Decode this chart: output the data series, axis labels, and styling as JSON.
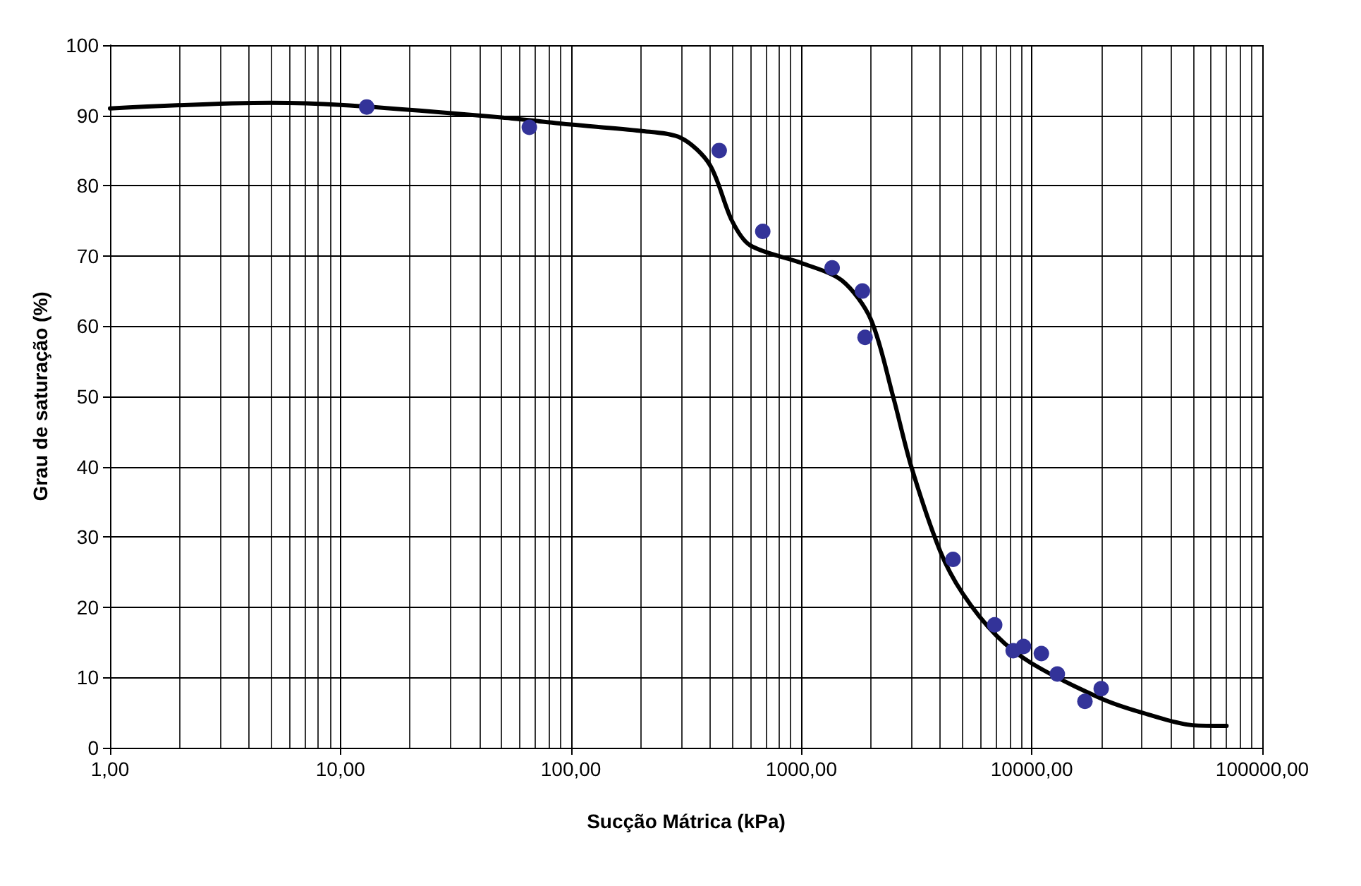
{
  "chart_data": {
    "type": "scatter",
    "xlabel": "Sucção Mátrica (kPa)",
    "ylabel": "Grau de saturação (%)",
    "log": "x",
    "grid": true,
    "xlim": [
      1,
      100000
    ],
    "xticks": [
      {
        "value": 1,
        "label": "1,00"
      },
      {
        "value": 10,
        "label": "10,00"
      },
      {
        "value": 100,
        "label": "100,00"
      },
      {
        "value": 1000,
        "label": "1000,00"
      },
      {
        "value": 10000,
        "label": "10000,00"
      },
      {
        "value": 100000,
        "label": "100000,00"
      }
    ],
    "ylim": [
      0,
      100
    ],
    "yticks": [
      0,
      10,
      20,
      30,
      40,
      50,
      60,
      70,
      80,
      90,
      100
    ],
    "series": [
      {
        "marker": "circle",
        "color": "#333399",
        "x": [
          13,
          66,
          440,
          680,
          1360,
          1840,
          1890,
          4550,
          6900,
          8300,
          9200,
          11000,
          12900,
          17000,
          20000
        ],
        "values": [
          91.2,
          88.3,
          85.0,
          73.5,
          68.3,
          65.0,
          58.4,
          26.8,
          17.5,
          13.8,
          14.4,
          13.4,
          10.5,
          6.6,
          8.4
        ]
      },
      {
        "type": "line",
        "marker": "none",
        "line_style": "solid",
        "color": "#000000",
        "x": [
          1,
          5,
          10,
          50,
          100,
          200,
          300,
          400,
          500,
          600,
          1000,
          1500,
          2000,
          2500,
          3000,
          4000,
          5000,
          7000,
          10000,
          20000,
          30000,
          50000,
          70000
        ],
        "values": [
          91,
          91.8,
          91.5,
          89.7,
          88.7,
          87.8,
          86.8,
          83,
          75,
          71.5,
          69,
          66.5,
          61,
          50,
          40,
          28,
          22,
          16,
          12,
          7,
          5,
          3.2,
          3.1
        ]
      }
    ]
  }
}
